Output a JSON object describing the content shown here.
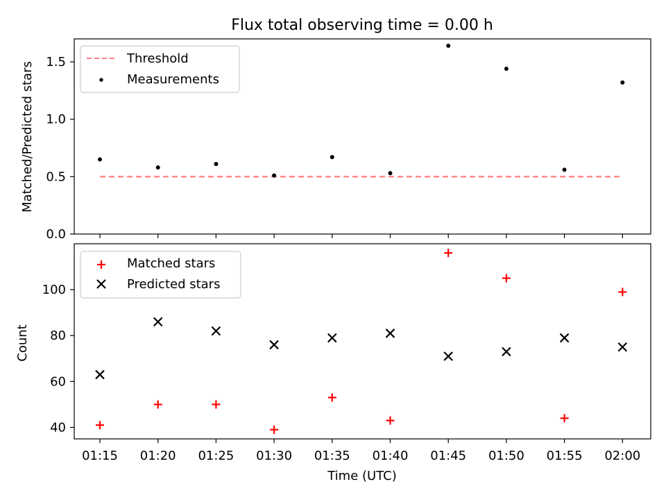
{
  "chart_data": [
    {
      "type": "scatter",
      "title": "Flux total observing time = 0.00 h",
      "xlabel": "",
      "ylabel": "Matched/Predicted stars",
      "ylim": [
        0.0,
        1.7
      ],
      "yticks": [
        0.0,
        0.5,
        1.0,
        1.5
      ],
      "ytick_labels": [
        "0.0",
        "0.5",
        "1.0",
        "1.5"
      ],
      "x": [
        "01:15",
        "01:20",
        "01:25",
        "01:30",
        "01:35",
        "01:40",
        "01:45",
        "01:50",
        "01:55",
        "02:00"
      ],
      "series": [
        {
          "name": "Threshold",
          "kind": "line",
          "style": "dashed",
          "color": "#ff7f7f",
          "values": [
            0.5,
            0.5,
            0.5,
            0.5,
            0.5,
            0.5,
            0.5,
            0.5,
            0.5,
            0.5
          ]
        },
        {
          "name": "Measurements",
          "kind": "scatter",
          "marker": "dot",
          "color": "#000000",
          "values": [
            0.65,
            0.58,
            0.61,
            0.51,
            0.67,
            0.53,
            1.64,
            1.44,
            0.56,
            1.32
          ]
        }
      ],
      "legend": "top-left"
    },
    {
      "type": "scatter",
      "xlabel": "Time (UTC)",
      "ylabel": "Count",
      "ylim": [
        35,
        120
      ],
      "yticks": [
        40,
        60,
        80,
        100
      ],
      "ytick_labels": [
        "40",
        "60",
        "80",
        "100"
      ],
      "x": [
        "01:15",
        "01:20",
        "01:25",
        "01:30",
        "01:35",
        "01:40",
        "01:45",
        "01:50",
        "01:55",
        "02:00"
      ],
      "xtick_labels": [
        "01:15",
        "01:20",
        "01:25",
        "01:30",
        "01:35",
        "01:40",
        "01:45",
        "01:50",
        "01:55",
        "02:00"
      ],
      "series": [
        {
          "name": "Matched stars",
          "kind": "scatter",
          "marker": "plus",
          "color": "#ff0000",
          "values": [
            41,
            50,
            50,
            39,
            53,
            43,
            116,
            105,
            44,
            99
          ]
        },
        {
          "name": "Predicted stars",
          "kind": "scatter",
          "marker": "x",
          "color": "#000000",
          "values": [
            63,
            86,
            82,
            76,
            79,
            81,
            71,
            73,
            79,
            75
          ]
        }
      ],
      "legend": "top-left"
    }
  ]
}
